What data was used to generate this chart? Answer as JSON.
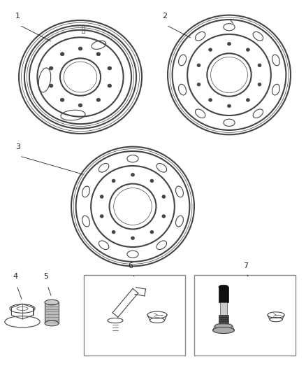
{
  "background_color": "#ffffff",
  "line_color": "#444444",
  "label_color": "#222222",
  "fig_width": 4.38,
  "fig_height": 5.33,
  "dpi": 100
}
